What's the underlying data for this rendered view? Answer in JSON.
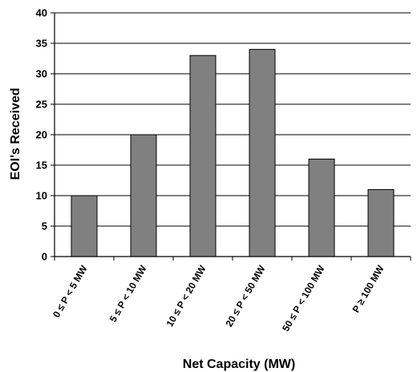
{
  "chart_data": {
    "type": "bar",
    "title": "",
    "xlabel": "Net Capacity (MW)",
    "ylabel": "EOI's Received",
    "categories": [
      "0 ≤ P < 5 MW",
      "5 ≤ P < 10 MW",
      "10 ≤ P < 20 MW",
      "20 ≤ P < 50 MW",
      "50 ≤ P < 100 MW",
      "P ≥ 100 MW"
    ],
    "values": [
      10,
      20,
      33,
      34,
      16,
      11
    ],
    "ylim": [
      0,
      40
    ],
    "yticks": [
      0,
      5,
      10,
      15,
      20,
      25,
      30,
      35,
      40
    ],
    "grid": true,
    "legend": "none",
    "colors": {
      "bar": "#808080",
      "bar_stroke": "#000000",
      "grid": "#000000"
    }
  }
}
